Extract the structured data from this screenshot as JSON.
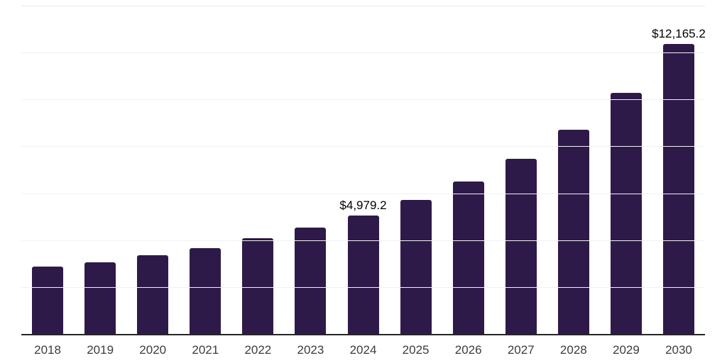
{
  "chart_data": {
    "type": "bar",
    "title": "",
    "xlabel": "",
    "ylabel": "",
    "categories": [
      "2018",
      "2019",
      "2020",
      "2021",
      "2022",
      "2023",
      "2024",
      "2025",
      "2026",
      "2027",
      "2028",
      "2029",
      "2030"
    ],
    "values": [
      2830,
      3005,
      3300,
      3600,
      4015,
      4460,
      4979.2,
      5625,
      6395,
      7350,
      8570,
      10115,
      12165.2
    ],
    "labeled_points": [
      {
        "category": "2024",
        "label": "$4,979.2"
      },
      {
        "category": "2030",
        "label": "$12,165.2"
      }
    ],
    "ylim": [
      0,
      13774
    ],
    "gridline_count": 7,
    "grid": "horizontal",
    "legend": "none",
    "colors": {
      "bar": "#2e1a49",
      "gridline": "#f1f1f4",
      "gridline_top": "#e7e7ea",
      "axis": "#262626",
      "tick_label": "#3c3c3c",
      "value_label": "#000000",
      "background": "#ffffff"
    }
  }
}
